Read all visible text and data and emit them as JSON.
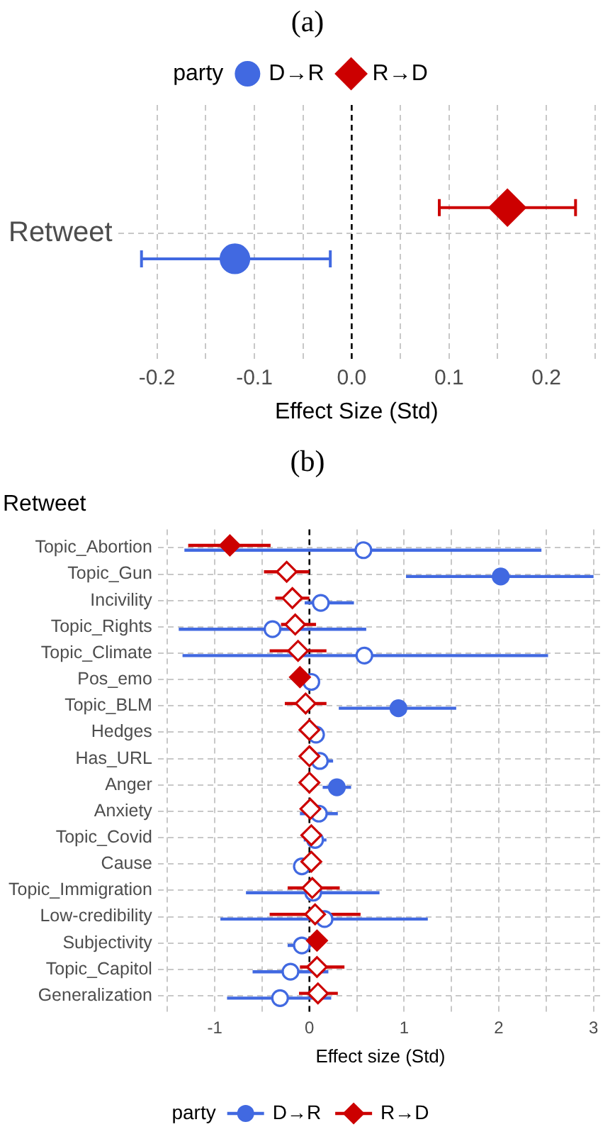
{
  "chart_data": [
    {
      "type": "scatter",
      "title": "(a)",
      "orientation": "horizontal",
      "categories": [
        "Retweet"
      ],
      "xlabel": "Effect Size (Std)",
      "legend_title": "party",
      "legend": "top",
      "grid": true,
      "xlim": [
        -0.24,
        0.25
      ],
      "xticks": [
        -0.2,
        {
          "value": -0.15,
          "label": null
        },
        -0.1,
        {
          "value": -0.05,
          "label": null
        },
        {
          "value": 0,
          "label": "0.0"
        },
        {
          "value": 0.05,
          "label": null
        },
        0.1,
        {
          "value": 0.15,
          "label": null
        },
        0.2,
        {
          "value": 0.25,
          "label": null
        }
      ],
      "ref_lines": [
        {
          "axis": "x",
          "value": 0,
          "color": "#000000",
          "line_style": "dashed"
        }
      ],
      "series": [
        {
          "name": "D→R",
          "color": "#4169e1",
          "marker": "circle",
          "values": [
            -0.12
          ],
          "errors": [
            [
              -0.216,
              -0.022
            ]
          ]
        },
        {
          "name": "R→D",
          "color": "#cc0000",
          "marker": "diamond",
          "values": [
            0.16
          ],
          "errors": [
            [
              0.09,
              0.23
            ]
          ]
        }
      ]
    },
    {
      "type": "scatter",
      "title": "(b)",
      "subtitle": "Retweet",
      "orientation": "horizontal",
      "categories": [
        "Topic_Abortion",
        "Topic_Gun",
        "Incivility",
        "Topic_Rights",
        "Topic_Climate",
        "Pos_emo",
        "Topic_BLM",
        "Hedges",
        "Has_URL",
        "Anger",
        "Anxiety",
        "Topic_Covid",
        "Cause",
        "Topic_Immigration",
        "Low-credibility",
        "Subjectivity",
        "Topic_Capitol",
        "Generalization"
      ],
      "xlabel": "Effect size (Std)",
      "legend_title": "party",
      "legend": "bottom",
      "grid": true,
      "xlim": [
        -1.6,
        3.1
      ],
      "xticks": [
        {
          "value": -1.5,
          "label": null
        },
        -1,
        {
          "value": -0.5,
          "label": null
        },
        0,
        {
          "value": 0.5,
          "label": null
        },
        1,
        {
          "value": 1.5,
          "label": null
        },
        2,
        {
          "value": 2.5,
          "label": null
        },
        3
      ],
      "ref_lines": [
        {
          "axis": "x",
          "value": 0,
          "color": "#000000",
          "line_style": "dashed"
        }
      ],
      "series": [
        {
          "name": "D→R",
          "color": "#4169e1",
          "marker": "circle",
          "values": [
            0.57,
            2.02,
            0.12,
            -0.39,
            0.58,
            0.02,
            0.94,
            0.07,
            0.11,
            0.29,
            0.1,
            0.06,
            -0.08,
            0.04,
            0.16,
            -0.08,
            -0.2,
            -0.31
          ],
          "errors": [
            [
              -1.32,
              2.45
            ],
            [
              1.02,
              3.0
            ],
            [
              -0.05,
              0.47
            ],
            [
              -1.38,
              0.6
            ],
            [
              -1.34,
              2.52
            ],
            [
              -0.02,
              0.06
            ],
            [
              0.31,
              1.55
            ],
            [
              0.0,
              0.1
            ],
            [
              0.0,
              0.25
            ],
            [
              0.14,
              0.44
            ],
            [
              -0.1,
              0.3
            ],
            [
              -0.06,
              0.18
            ],
            [
              -0.12,
              0.0
            ],
            [
              -0.67,
              0.74
            ],
            [
              -0.94,
              1.25
            ],
            [
              -0.23,
              0.02
            ],
            [
              -0.6,
              0.2
            ],
            [
              -0.87,
              0.23
            ]
          ],
          "colors": [
            "#ffffff",
            "#4169e1",
            "#ffffff",
            "#ffffff",
            "#ffffff",
            "#ffffff",
            "#4169e1",
            "#ffffff",
            "#ffffff",
            "#4169e1",
            "#ffffff",
            "#ffffff",
            "#ffffff",
            "#ffffff",
            "#ffffff",
            "#ffffff",
            "#ffffff",
            "#ffffff"
          ]
        },
        {
          "name": "R→D",
          "color": "#cc0000",
          "marker": "diamond",
          "values": [
            -0.84,
            -0.24,
            -0.18,
            -0.15,
            -0.12,
            -0.1,
            -0.04,
            0.0,
            0.0,
            0.0,
            0.01,
            0.02,
            0.02,
            0.03,
            0.06,
            0.08,
            0.08,
            0.09
          ],
          "errors": [
            [
              -1.28,
              -0.41
            ],
            [
              -0.48,
              0.0
            ],
            [
              -0.36,
              0.0
            ],
            [
              -0.3,
              0.07
            ],
            [
              -0.42,
              0.18
            ],
            [
              -0.13,
              -0.07
            ],
            [
              -0.26,
              0.18
            ],
            [
              -0.03,
              0.03
            ],
            [
              -0.03,
              0.03
            ],
            [
              -0.03,
              0.03
            ],
            [
              -0.03,
              0.05
            ],
            [
              -0.02,
              0.06
            ],
            [
              -0.02,
              0.06
            ],
            [
              -0.23,
              0.32
            ],
            [
              -0.42,
              0.54
            ],
            [
              0.05,
              0.11
            ],
            [
              -0.1,
              0.37
            ],
            [
              -0.11,
              0.3
            ]
          ],
          "colors": [
            "#cc0000",
            "#ffffff",
            "#ffffff",
            "#ffffff",
            "#ffffff",
            "#cc0000",
            "#ffffff",
            "#ffffff",
            "#ffffff",
            "#ffffff",
            "#ffffff",
            "#ffffff",
            "#ffffff",
            "#ffffff",
            "#ffffff",
            "#cc0000",
            "#ffffff",
            "#ffffff"
          ]
        }
      ]
    }
  ]
}
